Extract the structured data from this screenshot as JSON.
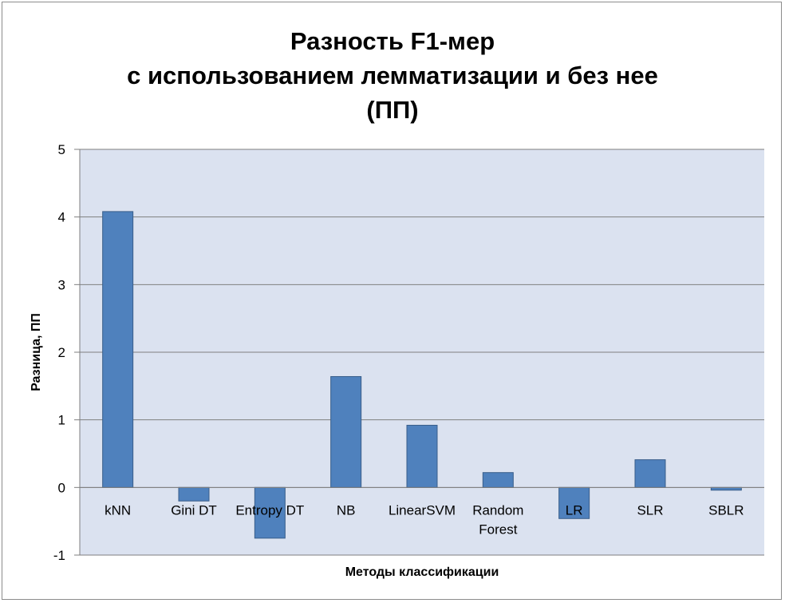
{
  "chart_data": {
    "type": "bar",
    "title_lines": [
      "Разность F1-мер",
      "с использованием лемматизации и без нее",
      "(ПП)"
    ],
    "xlabel": "Методы классификации",
    "ylabel": "Разница, ПП",
    "ylim": [
      -1,
      5
    ],
    "yticks": [
      5,
      4,
      3,
      2,
      1,
      0,
      -1
    ],
    "grid": true,
    "legend": "none",
    "bar_color": "#4f81bd",
    "plot_bg": "#dbe2f0",
    "categories": [
      [
        "kNN"
      ],
      [
        "Gini DT"
      ],
      [
        "Entropy DT"
      ],
      [
        "NB"
      ],
      [
        "LinearSVM"
      ],
      [
        "Random",
        "Forest"
      ],
      [
        "LR"
      ],
      [
        "SLR"
      ],
      [
        "SBLR"
      ]
    ],
    "values": [
      4.08,
      -0.2,
      -0.75,
      1.64,
      0.92,
      0.22,
      -0.46,
      0.41,
      -0.04
    ]
  }
}
